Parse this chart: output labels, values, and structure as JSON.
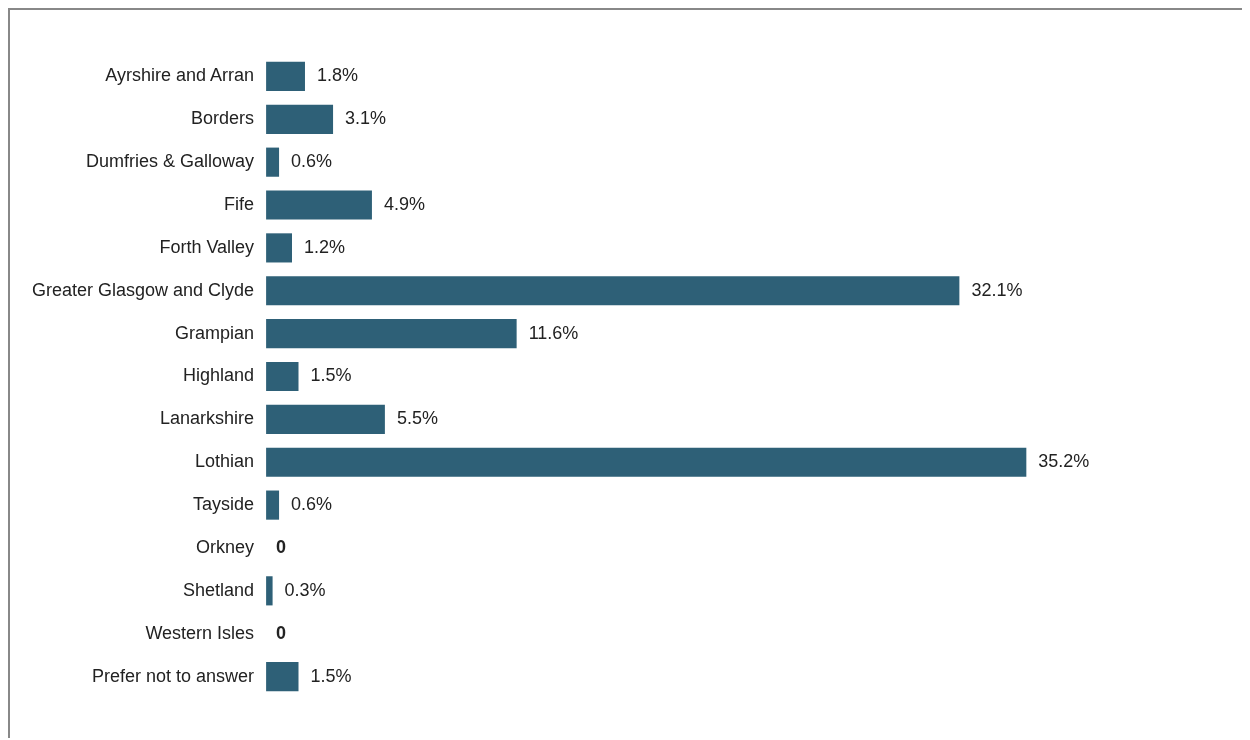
{
  "chart_data": {
    "type": "bar",
    "orientation": "horizontal",
    "categories": [
      "Ayrshire and Arran",
      "Borders",
      "Dumfries & Galloway",
      "Fife",
      "Forth Valley",
      "Greater Glasgow and Clyde",
      "Grampian",
      "Highland",
      "Lanarkshire",
      "Lothian",
      "Tayside",
      "Orkney",
      "Shetland",
      "Western Isles",
      "Prefer not to answer"
    ],
    "values": [
      1.8,
      3.1,
      0.6,
      4.9,
      1.2,
      32.1,
      11.6,
      1.5,
      5.5,
      35.2,
      0.6,
      0,
      0.3,
      0,
      1.5
    ],
    "value_labels": [
      "1.8%",
      "3.1%",
      "0.6%",
      "4.9%",
      "1.2%",
      "32.1%",
      "11.6%",
      "1.5%",
      "5.5%",
      "35.2%",
      "0.6%",
      "0",
      "0.3%",
      "0",
      "1.5%"
    ],
    "color": "#2e6077",
    "grid": false,
    "legend": false
  }
}
